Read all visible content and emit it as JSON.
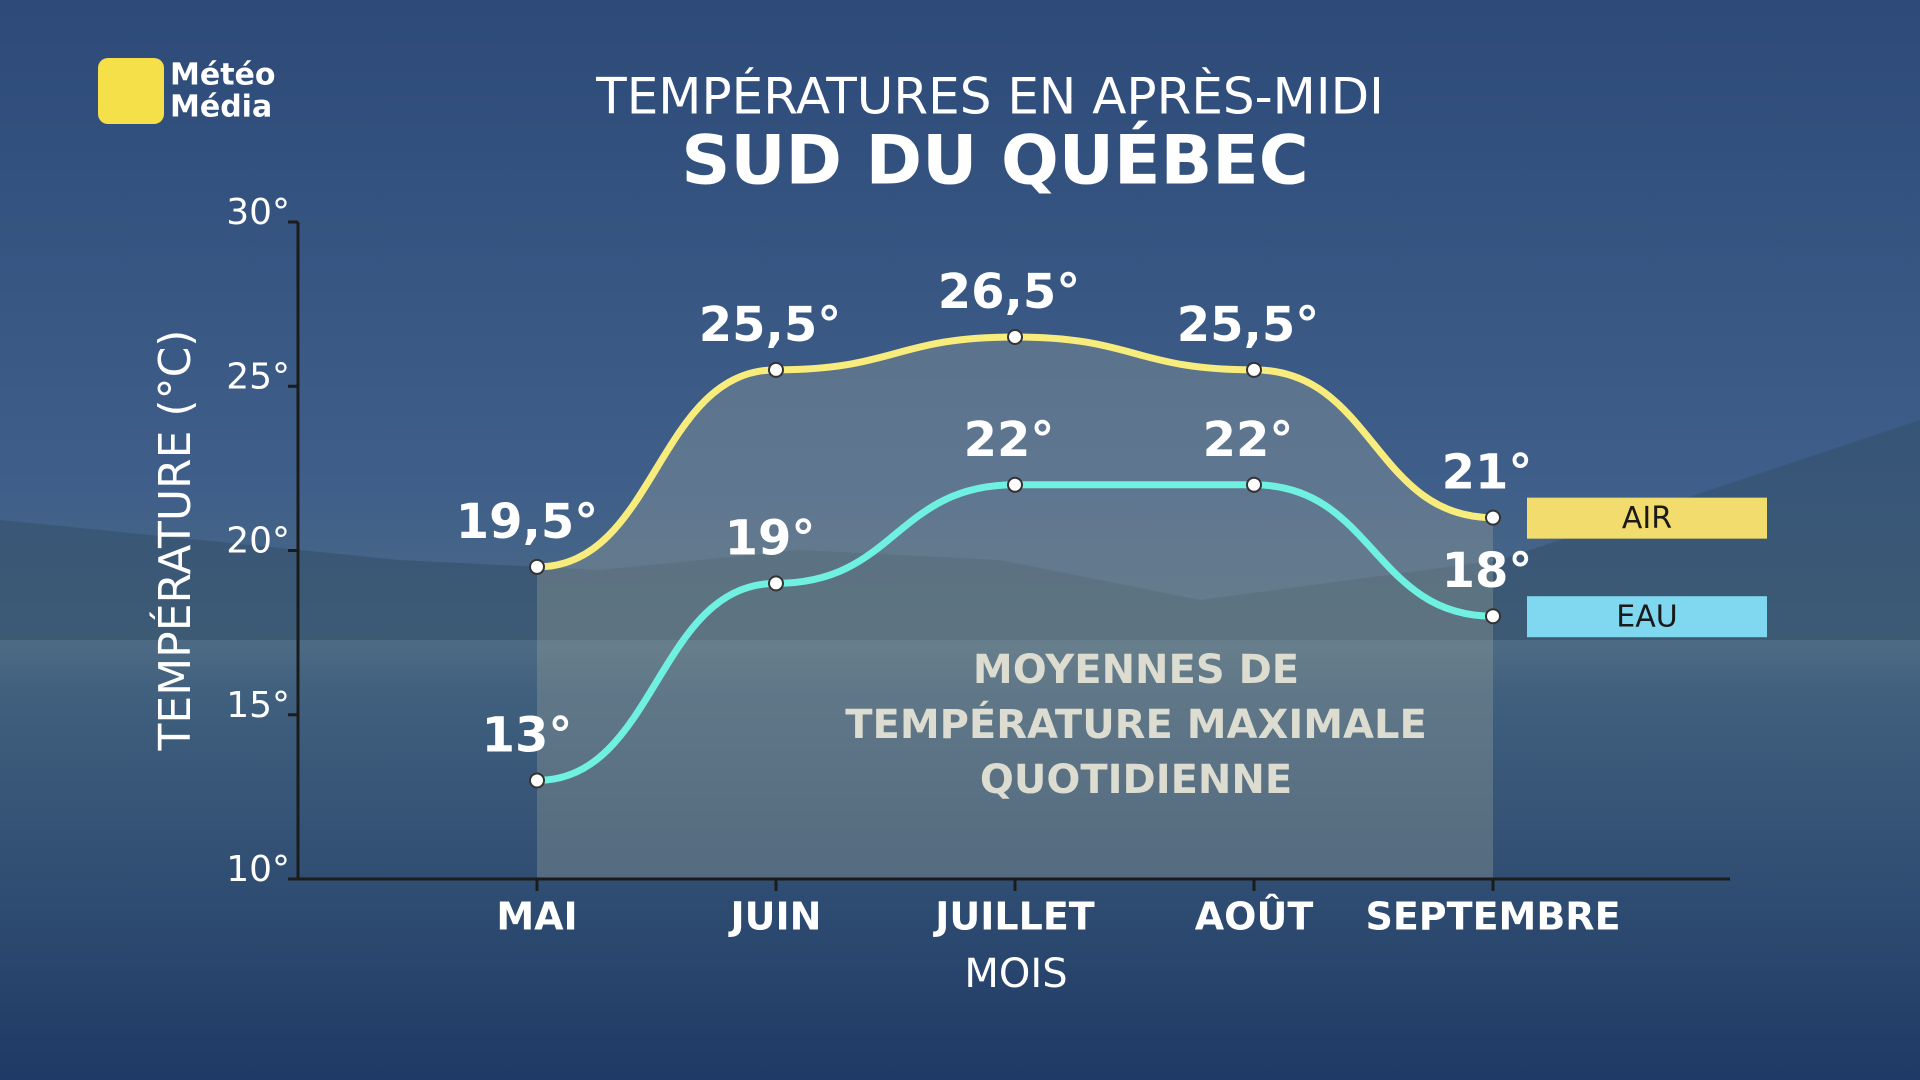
{
  "logo": [
    "Météo",
    "Média"
  ],
  "chart_data": {
    "type": "line",
    "title": "TEMPÉRATURES EN APRÈS-MIDI",
    "subtitle": "SUD DU QUÉBEC",
    "y_label": "TEMPÉRATURE (°C)",
    "x_label": "MOIS",
    "annotation": [
      "MOYENNES DE",
      "TEMPÉRATURE MAXIMALE",
      "QUOTIDIENNE"
    ],
    "categories": [
      "MAI",
      "JUIN",
      "JUILLET",
      "AOÛT",
      "SEPTEMBRE"
    ],
    "series": [
      {
        "name": "AIR",
        "color": "#f7ec7c",
        "legend_color": "#f2dc6e",
        "values": [
          19.5,
          25.5,
          26.5,
          25.5,
          21
        ],
        "value_labels": [
          "19,5°",
          "25,5°",
          "26,5°",
          "25,5°",
          "21°"
        ]
      },
      {
        "name": "EAU",
        "color": "#6ff0e0",
        "legend_color": "#7fd7f0",
        "values": [
          13,
          19,
          22,
          22,
          18
        ],
        "value_labels": [
          "13°",
          "19°",
          "22°",
          "22°",
          "18°"
        ]
      }
    ],
    "ylim": [
      10,
      30
    ],
    "yticks": [
      {
        "value": 10,
        "label": "10°"
      },
      {
        "value": 15,
        "label": "15°"
      },
      {
        "value": 20,
        "label": "20°"
      },
      {
        "value": 25,
        "label": "25°"
      },
      {
        "value": 30,
        "label": "30°"
      }
    ]
  }
}
